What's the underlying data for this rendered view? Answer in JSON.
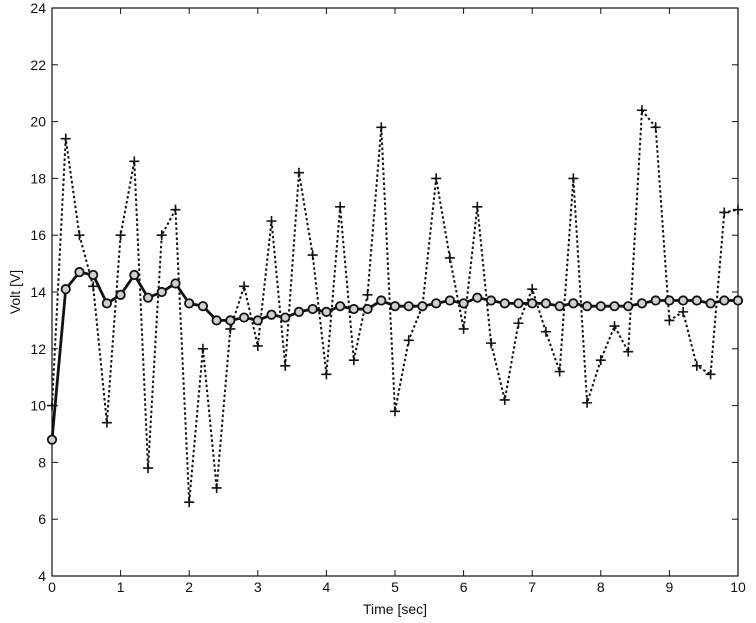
{
  "chart_data": {
    "type": "line",
    "title": "",
    "xlabel": "Time [sec]",
    "ylabel": "Volt [V]",
    "xlim": [
      0,
      10
    ],
    "ylim": [
      4,
      24
    ],
    "xticks": [
      0,
      1,
      2,
      3,
      4,
      5,
      6,
      7,
      8,
      9,
      10
    ],
    "yticks": [
      4,
      6,
      8,
      10,
      12,
      14,
      16,
      18,
      20,
      22,
      24
    ],
    "grid": false,
    "legend": "none",
    "series": [
      {
        "style": "dotted line with plus markers",
        "color": "#111111",
        "x": [
          0,
          0.2,
          0.4,
          0.6,
          0.8,
          1.0,
          1.2,
          1.4,
          1.6,
          1.8,
          2.0,
          2.2,
          2.4,
          2.6,
          2.8,
          3.0,
          3.2,
          3.4,
          3.6,
          3.8,
          4.0,
          4.2,
          4.4,
          4.6,
          4.8,
          5.0,
          5.2,
          5.4,
          5.6,
          5.8,
          6.0,
          6.2,
          6.4,
          6.6,
          6.8,
          7.0,
          7.2,
          7.4,
          7.6,
          7.8,
          8.0,
          8.2,
          8.4,
          8.6,
          8.8,
          9.0,
          9.2,
          9.4,
          9.6,
          9.8,
          10.0
        ],
        "y": [
          10.0,
          19.4,
          16.0,
          14.2,
          9.4,
          16.0,
          18.6,
          7.8,
          16.0,
          16.9,
          6.6,
          12.0,
          7.1,
          12.7,
          14.2,
          12.1,
          16.5,
          11.4,
          18.2,
          15.3,
          11.1,
          17.0,
          11.6,
          13.9,
          19.8,
          9.8,
          12.3,
          13.5,
          18.0,
          15.2,
          12.7,
          17.0,
          12.2,
          10.2,
          12.9,
          14.1,
          12.6,
          11.2,
          18.0,
          10.1,
          11.6,
          12.8,
          11.9,
          20.4,
          19.8,
          13.0,
          13.3,
          11.4,
          11.1,
          16.8,
          16.9
        ]
      },
      {
        "style": "solid line with circle markers",
        "color": "#111111",
        "x": [
          0,
          0.2,
          0.4,
          0.6,
          0.8,
          1.0,
          1.2,
          1.4,
          1.6,
          1.8,
          2.0,
          2.2,
          2.4,
          2.6,
          2.8,
          3.0,
          3.2,
          3.4,
          3.6,
          3.8,
          4.0,
          4.2,
          4.4,
          4.6,
          4.8,
          5.0,
          5.2,
          5.4,
          5.6,
          5.8,
          6.0,
          6.2,
          6.4,
          6.6,
          6.8,
          7.0,
          7.2,
          7.4,
          7.6,
          7.8,
          8.0,
          8.2,
          8.4,
          8.6,
          8.8,
          9.0,
          9.2,
          9.4,
          9.6,
          9.8,
          10.0
        ],
        "y": [
          8.8,
          14.1,
          14.7,
          14.6,
          13.6,
          13.9,
          14.6,
          13.8,
          14.0,
          14.3,
          13.6,
          13.5,
          13.0,
          13.0,
          13.1,
          13.0,
          13.2,
          13.1,
          13.3,
          13.4,
          13.3,
          13.5,
          13.4,
          13.4,
          13.7,
          13.5,
          13.5,
          13.5,
          13.6,
          13.7,
          13.6,
          13.8,
          13.7,
          13.6,
          13.6,
          13.6,
          13.6,
          13.5,
          13.6,
          13.5,
          13.5,
          13.5,
          13.5,
          13.6,
          13.7,
          13.7,
          13.7,
          13.7,
          13.6,
          13.7,
          13.7
        ]
      }
    ]
  }
}
